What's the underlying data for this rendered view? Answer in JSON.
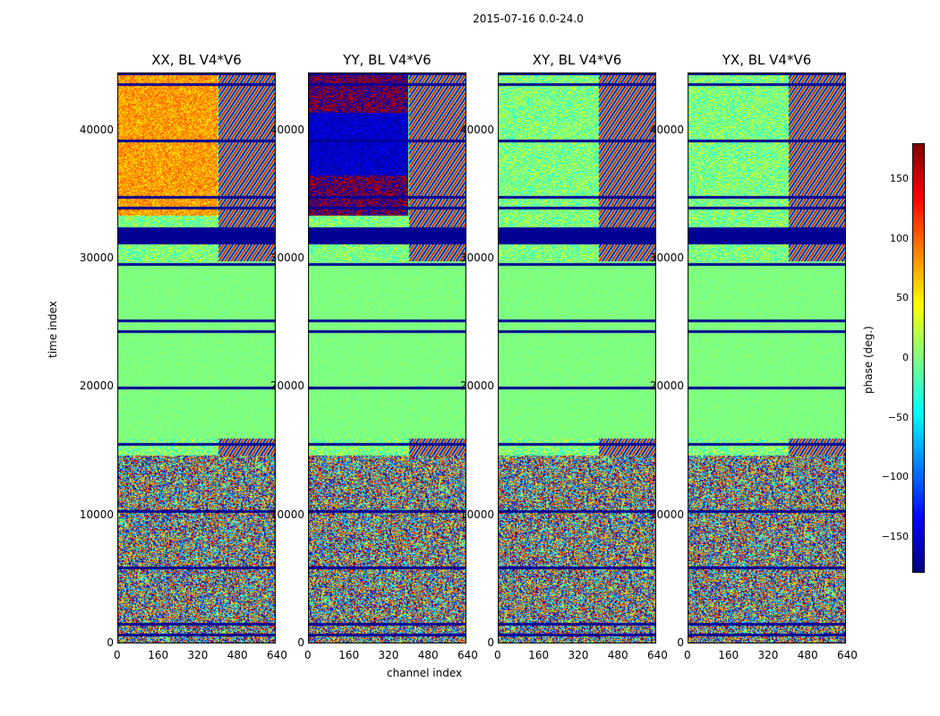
{
  "chart_data": {
    "type": "heatmap",
    "suptitle": "2015-07-16 0.0-24.0",
    "xlabel": "channel index",
    "ylabel": "time index",
    "x_ticks": [
      0,
      160,
      320,
      480,
      640
    ],
    "y_ticks": [
      0,
      10000,
      20000,
      30000,
      40000
    ],
    "xlim": [
      0,
      640
    ],
    "ylim": [
      0,
      44500
    ],
    "colormap": "jet",
    "colorbar": {
      "label": "phase (deg.)",
      "range": [
        -180,
        180
      ],
      "ticks": [
        -150,
        -100,
        -50,
        0,
        50,
        100,
        150
      ],
      "tick_labels": [
        "−150",
        "−100",
        "−50",
        "0",
        "50",
        "100",
        "150"
      ]
    },
    "panels": [
      {
        "title": "XX, BL V4*V6",
        "polarization": "XX"
      },
      {
        "title": "YY, BL V4*V6",
        "polarization": "YY"
      },
      {
        "title": "XY, BL V4*V6",
        "polarization": "XY"
      },
      {
        "title": "YX, BL V4*V6",
        "polarization": "YX"
      }
    ]
  }
}
